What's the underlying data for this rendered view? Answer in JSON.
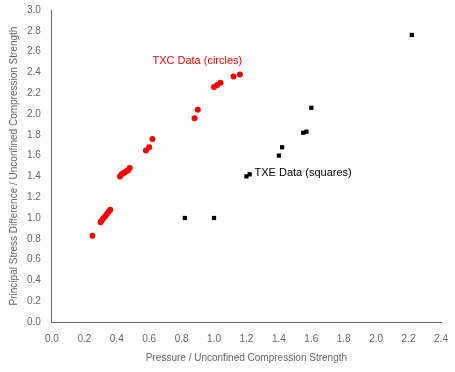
{
  "chart_data": {
    "type": "scatter",
    "xlabel": "Pressure / Unconfined Compression Strength",
    "ylabel": "Principal Stress Difference / Unconfined Compression Strength",
    "xlim": [
      0.0,
      2.4
    ],
    "ylim": [
      0.0,
      3.0
    ],
    "xticks": [
      {
        "value": 0,
        "label": "0.0"
      },
      0.2,
      0.4,
      0.6,
      0.8,
      {
        "value": 1,
        "label": "1.0"
      },
      1.2,
      1.4,
      1.6,
      1.8,
      {
        "value": 2,
        "label": "2.0"
      },
      2.2,
      2.4
    ],
    "yticks": [
      {
        "value": 0,
        "label": "0.0"
      },
      0.2,
      0.4,
      0.6,
      0.8,
      {
        "value": 1,
        "label": "1.0"
      },
      1.2,
      1.4,
      1.6,
      1.8,
      {
        "value": 2,
        "label": "2.0"
      },
      2.2,
      2.4,
      2.6,
      2.8,
      {
        "value": 3,
        "label": "3.0"
      }
    ],
    "grid": false,
    "series": [
      {
        "color": "red",
        "marker": "circle",
        "x": [
          0.25,
          0.3,
          0.31,
          0.32,
          0.33,
          0.34,
          0.35,
          0.36,
          0.42,
          0.43,
          0.44,
          0.45,
          0.46,
          0.47,
          0.48,
          0.58,
          0.6,
          0.62,
          0.88,
          0.9,
          1.0,
          1.02,
          1.04,
          1.12,
          1.16
        ],
        "values": [
          0.83,
          0.96,
          0.98,
          1.0,
          1.02,
          1.04,
          1.06,
          1.08,
          1.4,
          1.42,
          1.43,
          1.44,
          1.45,
          1.46,
          1.48,
          1.65,
          1.68,
          1.76,
          1.96,
          2.04,
          2.26,
          2.28,
          2.3,
          2.36,
          2.38
        ]
      },
      {
        "color": "black",
        "marker": "square",
        "x": [
          0.82,
          1.0,
          1.2,
          1.22,
          1.4,
          1.42,
          1.55,
          1.57,
          1.6,
          2.22
        ],
        "values": [
          1.0,
          1.0,
          1.4,
          1.42,
          1.6,
          1.68,
          1.82,
          1.83,
          2.06,
          2.76
        ]
      }
    ],
    "annotations": [
      {
        "text": "TXC Data (circles)",
        "x": 0.62,
        "y": 2.46,
        "color": "red"
      },
      {
        "text": "TXE Data (squares)",
        "x": 1.25,
        "y": 1.38,
        "color": "black"
      }
    ]
  }
}
